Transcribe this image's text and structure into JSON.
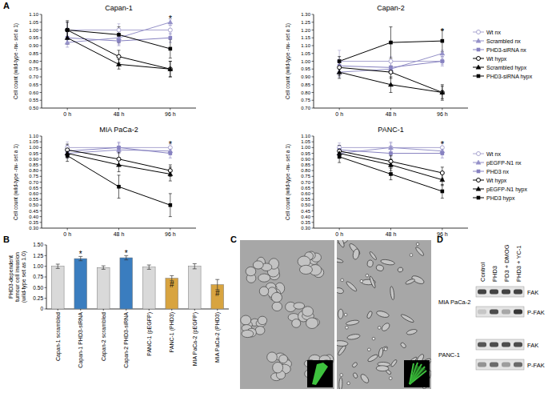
{
  "figure": {
    "panel_labels": [
      "A",
      "B",
      "C",
      "D"
    ]
  },
  "chart_data": [
    {
      "type": "line",
      "title": "Capan-1",
      "categories": [
        "0 h",
        "48 h",
        "96 h"
      ],
      "ylabel": "Cell count (wild-type -nx- set a 1)",
      "ylim": [
        0.5,
        1.1
      ],
      "yticks": [
        {
          "value": 0.5,
          "label": "0.50"
        },
        0.55,
        {
          "value": 0.6,
          "label": "0.60"
        },
        0.65,
        {
          "value": 0.7,
          "label": "0.70"
        },
        0.75,
        {
          "value": 0.8,
          "label": "0.80"
        },
        0.85,
        {
          "value": 0.9,
          "label": "0.90"
        },
        0.95,
        {
          "value": 1,
          "label": "1.00"
        },
        1.05,
        {
          "value": 1.1,
          "label": "1.10"
        }
      ],
      "series": [
        {
          "color": "#a9a5d0",
          "marker": "circle-open",
          "values": [
            1.0,
            1.0,
            1.0
          ],
          "errors": [
            0.05,
            0.04,
            0.03
          ]
        },
        {
          "color": "#9591c8",
          "marker": "triangle",
          "values": [
            0.92,
            0.95,
            1.05
          ],
          "errors": [
            0.03,
            0.04,
            0.02
          ]
        },
        {
          "color": "#8681c0",
          "marker": "square",
          "values": [
            0.95,
            0.93,
            0.95
          ],
          "errors": [
            0.04,
            0.03,
            0.03
          ]
        },
        {
          "color": "#000000",
          "marker": "circle-open",
          "values": [
            1.0,
            0.83,
            0.75
          ],
          "errors": [
            0.06,
            0.04,
            0.05
          ]
        },
        {
          "color": "#000000",
          "marker": "triangle",
          "values": [
            0.95,
            0.78,
            0.75
          ],
          "errors": [
            0.04,
            0.03,
            0.05
          ]
        },
        {
          "color": "#000000",
          "marker": "square",
          "values": [
            1.0,
            0.97,
            0.88
          ],
          "errors": [
            0.05,
            0.05,
            0.06
          ]
        }
      ],
      "annotations": [
        {
          "text": "*",
          "x": "96 h",
          "y": 1.08
        }
      ]
    },
    {
      "type": "line",
      "title": "Capan-2",
      "categories": [
        "0 h",
        "48 h",
        "96 h"
      ],
      "ylabel": "Cell count (wild-type -nx- set a 1)",
      "ylim": [
        0.7,
        1.3
      ],
      "yticks": [
        {
          "value": 0.7,
          "label": "0.70"
        },
        0.75,
        {
          "value": 0.8,
          "label": "0.80"
        },
        0.85,
        {
          "value": 0.9,
          "label": "0.90"
        },
        0.95,
        {
          "value": 1,
          "label": "1.00"
        },
        1.05,
        {
          "value": 1.1,
          "label": "1.10"
        },
        1.15,
        {
          "value": 1.2,
          "label": "1.20"
        },
        1.25,
        {
          "value": 1.3,
          "label": "1.30"
        }
      ],
      "legend": "right",
      "series": [
        {
          "name": "Wt nx",
          "color": "#a9a5d0",
          "marker": "circle-open",
          "values": [
            1.0,
            1.0,
            1.0
          ],
          "errors": [
            0.07,
            0.03,
            0.02
          ]
        },
        {
          "name": "Scrambled nx",
          "color": "#9591c8",
          "marker": "triangle",
          "values": [
            0.93,
            0.95,
            1.05
          ],
          "errors": [
            0.03,
            0.02,
            0.02
          ]
        },
        {
          "name": "PHD3-siRNA nx",
          "color": "#8681c0",
          "marker": "square",
          "values": [
            0.97,
            0.96,
            1.0
          ],
          "errors": [
            0.04,
            0.03,
            0.03
          ]
        },
        {
          "name": "Wt hypx",
          "color": "#000000",
          "marker": "circle-open",
          "values": [
            0.96,
            0.93,
            0.8
          ],
          "errors": [
            0.05,
            0.04,
            0.05
          ]
        },
        {
          "name": "Scrambled hypx",
          "color": "#000000",
          "marker": "triangle",
          "values": [
            0.93,
            0.85,
            0.8
          ],
          "errors": [
            0.04,
            0.05,
            0.04
          ]
        },
        {
          "name": "PHD3-siRNA hypx",
          "color": "#000000",
          "marker": "square",
          "values": [
            1.0,
            1.12,
            1.13
          ],
          "errors": [
            0.03,
            0.1,
            0.07
          ]
        }
      ],
      "annotations": [
        {
          "text": "*",
          "x": "96 h",
          "y": 1.2
        }
      ]
    },
    {
      "type": "line",
      "title": "MIA PaCa-2",
      "categories": [
        "0 h",
        "48 h",
        "96 h"
      ],
      "ylabel": "Cell count (wild-type -nx- set a 1)",
      "ylim": [
        0.3,
        1.1
      ],
      "yticks": [
        {
          "value": 0.3,
          "label": "0.30"
        },
        0.35,
        {
          "value": 0.4,
          "label": "0.40"
        },
        0.45,
        {
          "value": 0.5,
          "label": "0.50"
        },
        0.55,
        {
          "value": 0.6,
          "label": "0.60"
        },
        0.65,
        {
          "value": 0.7,
          "label": "0.70"
        },
        0.75,
        {
          "value": 0.8,
          "label": "0.80"
        },
        0.85,
        {
          "value": 0.9,
          "label": "0.90"
        },
        0.95,
        {
          "value": 1,
          "label": "1.00"
        },
        1.05,
        {
          "value": 1.1,
          "label": "1.10"
        }
      ],
      "series": [
        {
          "color": "#a9a5d0",
          "marker": "circle-open",
          "values": [
            1.0,
            1.0,
            1.0
          ],
          "errors": [
            0.05,
            0.05,
            0.03
          ]
        },
        {
          "color": "#9591c8",
          "marker": "triangle",
          "values": [
            0.95,
            0.98,
            0.97
          ],
          "errors": [
            0.04,
            0.03,
            0.03
          ]
        },
        {
          "color": "#8681c0",
          "marker": "square",
          "values": [
            0.97,
            1.0,
            0.95
          ],
          "errors": [
            0.05,
            0.04,
            0.04
          ]
        },
        {
          "color": "#000000",
          "marker": "circle-open",
          "values": [
            0.98,
            0.9,
            0.8
          ],
          "errors": [
            0.05,
            0.06,
            0.05
          ]
        },
        {
          "color": "#000000",
          "marker": "triangle",
          "values": [
            0.95,
            0.85,
            0.77
          ],
          "errors": [
            0.04,
            0.06,
            0.06
          ]
        },
        {
          "color": "#000000",
          "marker": "square",
          "values": [
            0.93,
            0.66,
            0.5
          ],
          "errors": [
            0.05,
            0.1,
            0.1
          ]
        }
      ],
      "annotations": [
        {
          "text": "*",
          "x": "96 h",
          "y": 1.04
        }
      ]
    },
    {
      "type": "line",
      "title": "PANC-1",
      "categories": [
        "0 h",
        "48 h",
        "96 h"
      ],
      "ylabel": "Cell count (wild-type -nx- set a 1)",
      "ylim": [
        0.3,
        1.1
      ],
      "yticks": [
        {
          "value": 0.3,
          "label": "0.30"
        },
        0.35,
        {
          "value": 0.4,
          "label": "0.40"
        },
        0.45,
        {
          "value": 0.5,
          "label": "0.50"
        },
        0.55,
        {
          "value": 0.6,
          "label": "0.60"
        },
        0.65,
        {
          "value": 0.7,
          "label": "0.70"
        },
        0.75,
        {
          "value": 0.8,
          "label": "0.80"
        },
        0.85,
        {
          "value": 0.9,
          "label": "0.90"
        },
        0.95,
        {
          "value": 1,
          "label": "1.00"
        },
        1.05,
        {
          "value": 1.1,
          "label": "1.10"
        }
      ],
      "legend": "right",
      "series": [
        {
          "name": "Wt nx",
          "color": "#a9a5d0",
          "marker": "circle-open",
          "values": [
            1.0,
            1.0,
            1.0
          ],
          "errors": [
            0.04,
            0.05,
            0.04
          ]
        },
        {
          "name": "pEGFP-N1 nx",
          "color": "#9591c8",
          "marker": "triangle",
          "values": [
            0.95,
            1.0,
            0.97
          ],
          "errors": [
            0.04,
            0.04,
            0.03
          ]
        },
        {
          "name": "PHD3 nx",
          "color": "#8681c0",
          "marker": "square",
          "values": [
            0.98,
            0.95,
            0.95
          ],
          "errors": [
            0.04,
            0.03,
            0.04
          ]
        },
        {
          "name": "Wt hypx",
          "color": "#000000",
          "marker": "circle-open",
          "values": [
            0.97,
            0.88,
            0.78
          ],
          "errors": [
            0.05,
            0.05,
            0.05
          ]
        },
        {
          "name": "pEGFP-N1 hypx",
          "color": "#000000",
          "marker": "triangle",
          "values": [
            0.95,
            0.85,
            0.72
          ],
          "errors": [
            0.04,
            0.05,
            0.05
          ]
        },
        {
          "name": "PHD3 hypx",
          "color": "#000000",
          "marker": "square",
          "values": [
            0.92,
            0.77,
            0.62
          ],
          "errors": [
            0.05,
            0.05,
            0.06
          ]
        }
      ],
      "annotations": [
        {
          "text": "*",
          "x": "96 h",
          "y": 1.04
        }
      ]
    },
    {
      "type": "bar",
      "categories": [
        "Capan-1 scrambled",
        "Capan-1 PHD3-siRNA",
        "Capan-2 scrambled",
        "Capan-2 PHD3-siRNA",
        "PANC-1 (pEGFP)",
        "PANC-1 (PHD3)",
        "MIA PaCa-2 (pEGFP)",
        "MIA PaCa-2 (PHD3)"
      ],
      "values": [
        1.0,
        1.18,
        0.97,
        1.2,
        0.98,
        0.72,
        1.0,
        0.57
      ],
      "errors": [
        0.05,
        0.05,
        0.04,
        0.05,
        0.05,
        0.06,
        0.06,
        0.12
      ],
      "colors": [
        "#d9d9d9",
        "#3a7dbf",
        "#d9d9d9",
        "#3a7dbf",
        "#d9d9d9",
        "#d8a440",
        "#d9d9d9",
        "#d8a440"
      ],
      "ylabel": [
        "PHD3-dependent",
        "tumour cell invasion",
        "(wild-type set as 1.0)"
      ],
      "ylim": [
        0,
        1.5
      ],
      "yticks": [
        0,
        0.25,
        {
          "value": 0.5,
          "label": "0.50"
        },
        0.75,
        {
          "value": 1,
          "label": "1.00"
        },
        1.25,
        {
          "value": 1.5,
          "label": "1.50"
        }
      ],
      "annotations": [
        {
          "text": "*",
          "x": "Capan-1 PHD3-siRNA",
          "y": 1.3
        },
        {
          "text": "*",
          "x": "Capan-2 PHD3-siRNA",
          "y": 1.32
        },
        {
          "text": "#",
          "x": "PANC-1 (PHD3)",
          "y": 0.58
        },
        {
          "text": "#",
          "x": "MIA PaCa-2 (PHD3)",
          "y": 0.37
        }
      ]
    }
  ],
  "micrographs": {
    "count": 2
  },
  "blot": {
    "columns": [
      "Control",
      "PHD3",
      "PD3 + DMOG",
      "PHD3 + YC-1"
    ],
    "groups": [
      {
        "label": "MIA PaCa-2",
        "bands": [
          {
            "label": "FAK",
            "intensity": [
              0.8,
              0.8,
              0.8,
              0.8
            ]
          },
          {
            "label": "P-FAK",
            "intensity": [
              0.15,
              0.75,
              0.3,
              0.85
            ]
          }
        ]
      },
      {
        "label": "PANC-1",
        "bands": [
          {
            "label": "FAK",
            "intensity": [
              0.7,
              0.75,
              0.75,
              0.75
            ]
          },
          {
            "label": "P-FAK",
            "intensity": [
              0.4,
              0.6,
              0.35,
              0.6
            ]
          }
        ]
      }
    ]
  }
}
